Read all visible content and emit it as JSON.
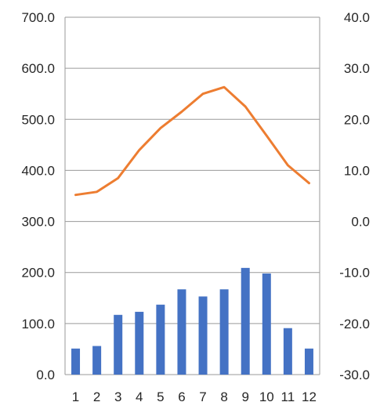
{
  "chart_data": {
    "type": "bar+line",
    "categories": [
      "1",
      "2",
      "3",
      "4",
      "5",
      "6",
      "7",
      "8",
      "9",
      "10",
      "11",
      "12"
    ],
    "series": [
      {
        "type": "bar",
        "axis": "left",
        "color": "#4472C4",
        "values": [
          51,
          56,
          117,
          123,
          137,
          167,
          153,
          167,
          209,
          198,
          91,
          51
        ]
      },
      {
        "type": "line",
        "axis": "right",
        "color": "#ED7D31",
        "values": [
          5.2,
          5.8,
          8.5,
          14.0,
          18.3,
          21.5,
          25.0,
          26.3,
          22.5,
          16.8,
          11.0,
          7.5
        ]
      }
    ],
    "y_left": {
      "min": 0,
      "max": 700,
      "step": 100,
      "tick_labels": [
        "0.0",
        "100.0",
        "200.0",
        "300.0",
        "400.0",
        "500.0",
        "600.0",
        "700.0"
      ]
    },
    "y_right": {
      "min": -30,
      "max": 40,
      "step": 10,
      "tick_labels": [
        "-30.0",
        "-20.0",
        "-10.0",
        "0.0",
        "10.0",
        "20.0",
        "30.0",
        "40.0"
      ]
    },
    "grid": true,
    "legend": "none",
    "title": ""
  }
}
